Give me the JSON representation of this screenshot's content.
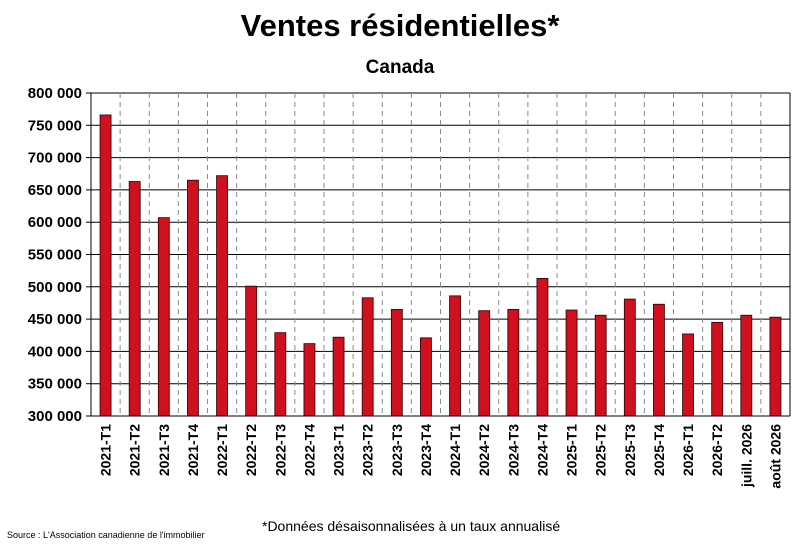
{
  "chart_data": {
    "type": "bar",
    "title": "Ventes résidentielles*",
    "subtitle": "Canada",
    "categories": [
      "2021-T1",
      "2021-T2",
      "2021-T3",
      "2021-T4",
      "2022-T1",
      "2022-T2",
      "2022-T3",
      "2022-T4",
      "2023-T1",
      "2023-T2",
      "2023-T3",
      "2023-T4",
      "2024-T1",
      "2024-T2",
      "2024-T3",
      "2024-T4",
      "2025-T1",
      "2025-T2",
      "2025-T3",
      "2025-T4",
      "2026-T1",
      "2026-T2",
      "juill. 2026",
      "août 2026"
    ],
    "values": [
      766000,
      663000,
      607000,
      665000,
      672000,
      501000,
      429000,
      412000,
      422000,
      483000,
      465000,
      421000,
      486000,
      463000,
      465000,
      513000,
      464000,
      456000,
      481000,
      473000,
      427000,
      445000,
      456000,
      453000
    ],
    "ylim": [
      300000,
      800000
    ],
    "yticks": [
      300000,
      350000,
      400000,
      450000,
      500000,
      550000,
      600000,
      650000,
      700000,
      750000,
      800000
    ],
    "ytick_labels": [
      "300 000",
      "350 000",
      "400 000",
      "450 000",
      "500 000",
      "550 000",
      "600 000",
      "650 000",
      "700 000",
      "750 000",
      "800 000"
    ],
    "grid": true,
    "bar_color": "#d0101e",
    "note": "*Données désaisonnalisées à un taux annualisé",
    "source": "Source : L'Association canadienne de l'immobilier"
  }
}
